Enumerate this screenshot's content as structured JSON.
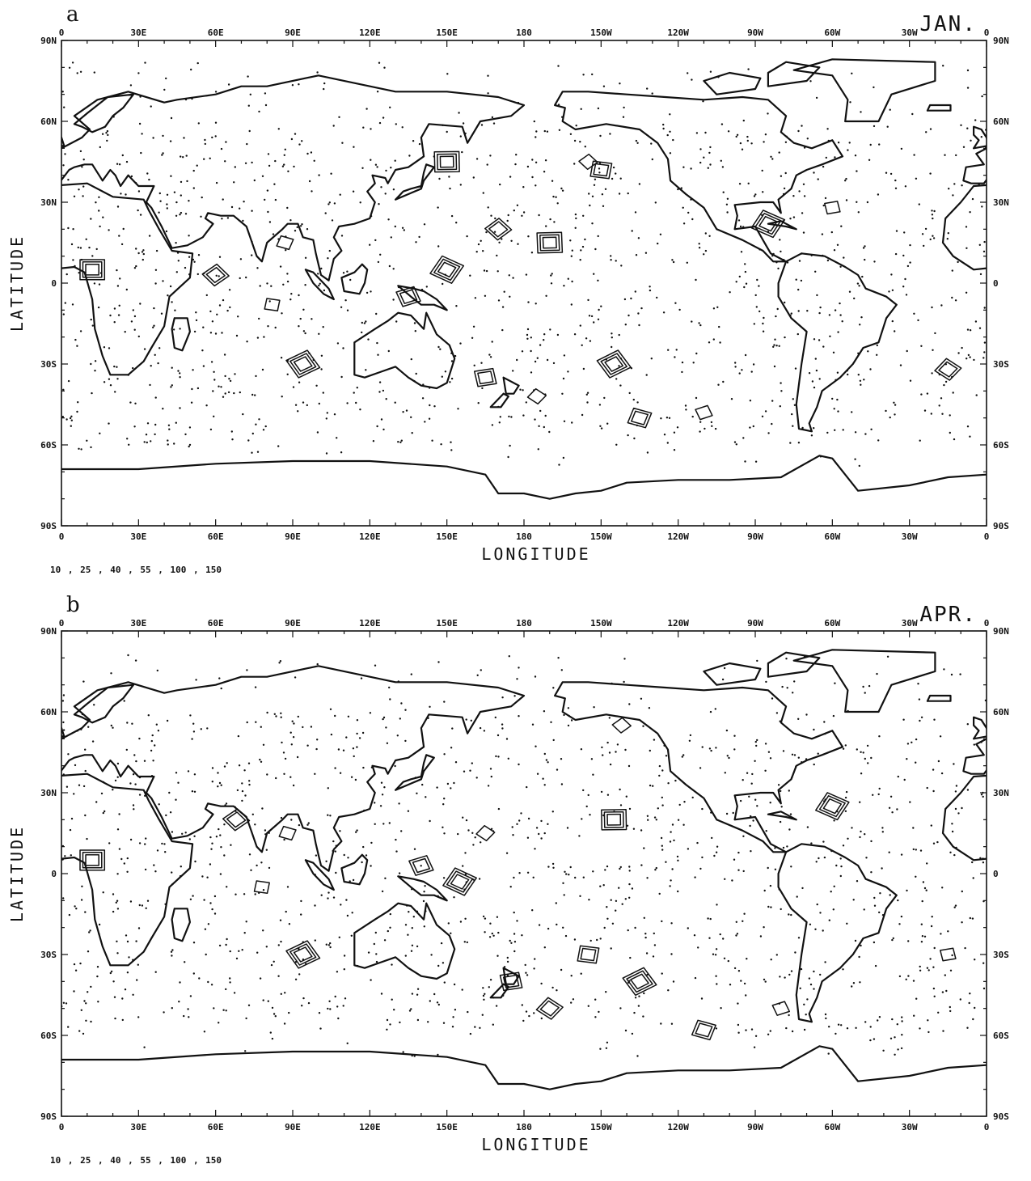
{
  "panels": [
    {
      "letter": "a",
      "month": "JAN.",
      "lon_ticks": [
        "0",
        "30E",
        "60E",
        "90E",
        "120E",
        "150E",
        "180",
        "150W",
        "120W",
        "90W",
        "60W",
        "30W",
        "0"
      ],
      "lat_ticks_left": [
        "90N",
        "60N",
        "30N",
        "0",
        "30S",
        "60S",
        "90S"
      ],
      "lat_ticks_right": [
        "90N",
        "60N",
        "30N",
        "0",
        "30S",
        "60S",
        "90S"
      ],
      "xlabel": "LONGITUDE",
      "ylabel": "LATITUDE",
      "contour_levels": "10 , 25 , 40 , 55 , 100 , 150"
    },
    {
      "letter": "b",
      "month": "APR.",
      "lon_ticks": [
        "0",
        "30E",
        "60E",
        "90E",
        "120E",
        "150E",
        "180",
        "150W",
        "120W",
        "90W",
        "60W",
        "30W",
        "0"
      ],
      "lat_ticks_left": [
        "90N",
        "60N",
        "30N",
        "0",
        "30S",
        "60S",
        "90S"
      ],
      "lat_ticks_right": [
        "90N",
        "60N",
        "30N",
        "0",
        "30S",
        "60S",
        "90S"
      ],
      "xlabel": "LONGITUDE",
      "ylabel": "LATITUDE",
      "contour_levels": "10 , 25 , 40 , 55 , 100 , 150"
    }
  ],
  "chart_data": [
    {
      "type": "map",
      "month": "JAN.",
      "projection": "equirectangular",
      "xlim": [
        0,
        360
      ],
      "ylim": [
        -90,
        90
      ],
      "contour_levels": [
        10,
        25,
        40,
        55,
        100,
        150
      ],
      "contour_centers": [
        {
          "lon": 12,
          "lat": 5
        },
        {
          "lon": 60,
          "lat": 3
        },
        {
          "lon": 82,
          "lat": -8
        },
        {
          "lon": 94,
          "lat": -30
        },
        {
          "lon": 87,
          "lat": 15
        },
        {
          "lon": 135,
          "lat": -5
        },
        {
          "lon": 150,
          "lat": 5
        },
        {
          "lon": 165,
          "lat": -35
        },
        {
          "lon": 185,
          "lat": -42
        },
        {
          "lon": 150,
          "lat": 45
        },
        {
          "lon": 205,
          "lat": 45
        },
        {
          "lon": 210,
          "lat": 42
        },
        {
          "lon": 215,
          "lat": -30
        },
        {
          "lon": 225,
          "lat": -50
        },
        {
          "lon": 250,
          "lat": -48
        },
        {
          "lon": 275,
          "lat": 22
        },
        {
          "lon": 300,
          "lat": 28
        },
        {
          "lon": 345,
          "lat": -32
        },
        {
          "lon": 190,
          "lat": 15
        },
        {
          "lon": 170,
          "lat": 20
        }
      ]
    },
    {
      "type": "map",
      "month": "APR.",
      "projection": "equirectangular",
      "xlim": [
        0,
        360
      ],
      "ylim": [
        -90,
        90
      ],
      "contour_levels": [
        10,
        25,
        40,
        55,
        100,
        150
      ],
      "contour_centers": [
        {
          "lon": 12,
          "lat": 5
        },
        {
          "lon": 68,
          "lat": 20
        },
        {
          "lon": 78,
          "lat": -5
        },
        {
          "lon": 94,
          "lat": -30
        },
        {
          "lon": 88,
          "lat": 15
        },
        {
          "lon": 140,
          "lat": 3
        },
        {
          "lon": 155,
          "lat": -3
        },
        {
          "lon": 175,
          "lat": -40
        },
        {
          "lon": 165,
          "lat": 15
        },
        {
          "lon": 215,
          "lat": 20
        },
        {
          "lon": 218,
          "lat": 55
        },
        {
          "lon": 205,
          "lat": -30
        },
        {
          "lon": 225,
          "lat": -40
        },
        {
          "lon": 250,
          "lat": -58
        },
        {
          "lon": 280,
          "lat": -50
        },
        {
          "lon": 300,
          "lat": 25
        },
        {
          "lon": 345,
          "lat": -30
        },
        {
          "lon": 190,
          "lat": -50
        }
      ]
    }
  ]
}
